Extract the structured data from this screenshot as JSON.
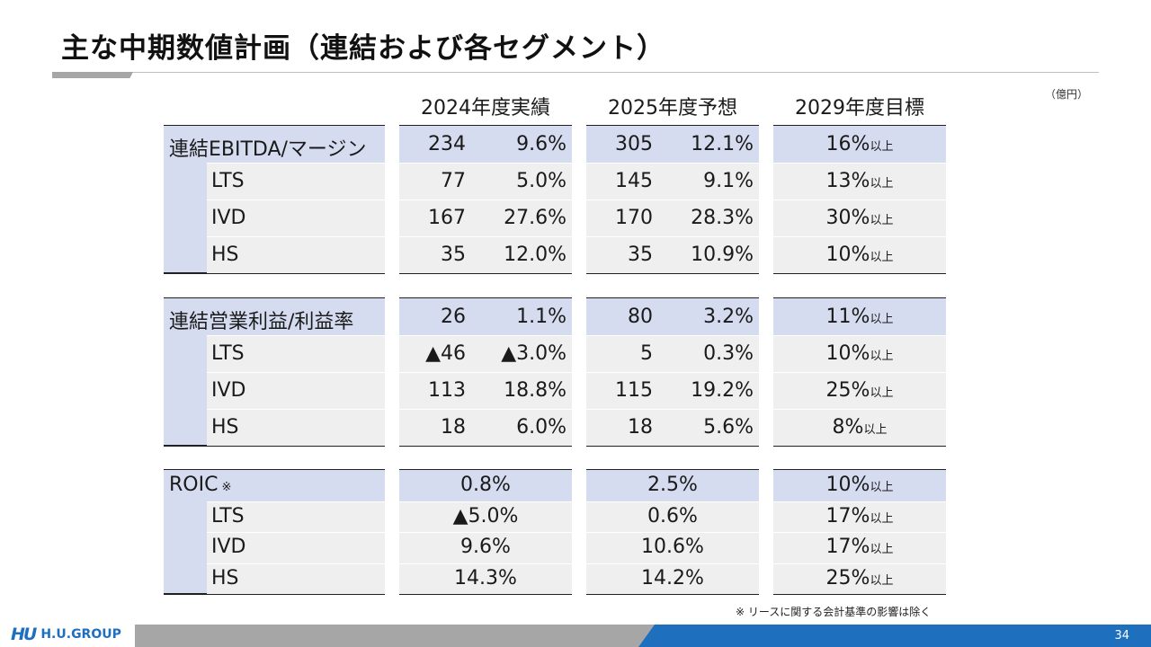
{
  "title": "主な中期数値計画（連結および各セグメント）",
  "unit": "（億円）",
  "columns": [
    "2024年度実績",
    "2025年度予想",
    "2029年度目標"
  ],
  "target_suffix": "以上",
  "sections": [
    {
      "rows": [
        {
          "label": "連結EBITDA/マージン",
          "v24": "234",
          "p24": "9.6%",
          "v25": "305",
          "p25": "12.1%",
          "t29": "16%"
        },
        {
          "label": "LTS",
          "v24": "77",
          "p24": "5.0%",
          "v25": "145",
          "p25": "9.1%",
          "t29": "13%"
        },
        {
          "label": "IVD",
          "v24": "167",
          "p24": "27.6%",
          "v25": "170",
          "p25": "28.3%",
          "t29": "30%"
        },
        {
          "label": "HS",
          "v24": "35",
          "p24": "12.0%",
          "v25": "35",
          "p25": "10.9%",
          "t29": "10%"
        }
      ]
    },
    {
      "rows": [
        {
          "label": "連結営業利益/利益率",
          "v24": "26",
          "p24": "1.1%",
          "v25": "80",
          "p25": "3.2%",
          "t29": "11%"
        },
        {
          "label": "LTS",
          "v24": "▲46",
          "p24": "▲3.0%",
          "v25": "5",
          "p25": "0.3%",
          "t29": "10%"
        },
        {
          "label": "IVD",
          "v24": "113",
          "p24": "18.8%",
          "v25": "115",
          "p25": "19.2%",
          "t29": "25%"
        },
        {
          "label": "HS",
          "v24": "18",
          "p24": "6.0%",
          "v25": "18",
          "p25": "5.6%",
          "t29": "8%"
        }
      ]
    },
    {
      "rows": [
        {
          "label": "ROIC",
          "mark": "※",
          "r24": "0.8%",
          "r25": "2.5%",
          "t29": "10%"
        },
        {
          "label": "LTS",
          "r24": "▲5.0%",
          "r25": "0.6%",
          "t29": "17%"
        },
        {
          "label": "IVD",
          "r24": "9.6%",
          "r25": "10.6%",
          "t29": "17%"
        },
        {
          "label": "HS",
          "r24": "14.3%",
          "r25": "14.2%",
          "t29": "25%"
        }
      ]
    }
  ],
  "footnote": "※ リースに関する会計基準の影響は除く",
  "footer": {
    "logo_mark": "HU",
    "logo_text": "H.U.GROUP",
    "page_number": "34"
  },
  "colors": {
    "header_band": "#d6dcf0",
    "row_band": "#efefef",
    "accent_blue": "#1f6fbf",
    "footer_gray": "#a6a6a6"
  }
}
